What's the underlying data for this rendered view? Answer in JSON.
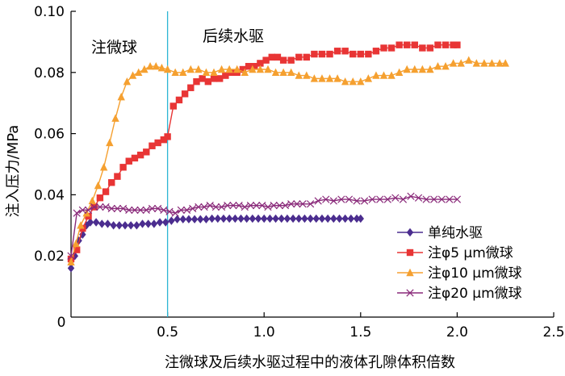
{
  "chart_data": {
    "type": "line",
    "title": "",
    "xlabel": "注微球及后续水驱过程中的液体孔隙体积倍数",
    "ylabel": "注入压力/MPa",
    "xlim": [
      0,
      2.5
    ],
    "ylim": [
      0,
      0.1
    ],
    "x_ticks": [
      "0.5",
      "1.0",
      "1.5",
      "2.0",
      "2.5"
    ],
    "y_ticks": [
      "0",
      "0.02",
      "0.04",
      "0.06",
      "0.08",
      "0.10"
    ],
    "grid": false,
    "legend_position": "bottom-right",
    "annotations": [
      {
        "text": "注微球"
      },
      {
        "text": "后续水驱"
      }
    ],
    "vline": {
      "x": 0.5,
      "color": "#2bb5d4"
    },
    "series": [
      {
        "name": "单纯水驱",
        "color": "#4b2d8f",
        "marker": "diamond",
        "x": [
          0.0,
          0.02,
          0.04,
          0.06,
          0.08,
          0.1,
          0.13,
          0.16,
          0.19,
          0.22,
          0.25,
          0.28,
          0.31,
          0.34,
          0.37,
          0.4,
          0.43,
          0.46,
          0.49,
          0.52,
          0.55,
          0.58,
          0.61,
          0.64,
          0.67,
          0.7,
          0.73,
          0.76,
          0.79,
          0.82,
          0.85,
          0.88,
          0.91,
          0.94,
          0.97,
          1.0,
          1.03,
          1.06,
          1.09,
          1.12,
          1.15,
          1.18,
          1.21,
          1.24,
          1.27,
          1.3,
          1.33,
          1.36,
          1.39,
          1.42,
          1.45,
          1.48,
          1.5
        ],
        "y": [
          0.016,
          0.02,
          0.025,
          0.027,
          0.03,
          0.031,
          0.031,
          0.0305,
          0.0305,
          0.03,
          0.03,
          0.03,
          0.03,
          0.03,
          0.0305,
          0.0305,
          0.0305,
          0.031,
          0.031,
          0.0315,
          0.032,
          0.032,
          0.032,
          0.032,
          0.032,
          0.032,
          0.0322,
          0.0322,
          0.0322,
          0.0322,
          0.0322,
          0.0322,
          0.0322,
          0.0322,
          0.0322,
          0.0322,
          0.0322,
          0.0322,
          0.0322,
          0.0322,
          0.0322,
          0.0322,
          0.0322,
          0.0322,
          0.0322,
          0.0322,
          0.0322,
          0.0322,
          0.0322,
          0.0322,
          0.0322,
          0.0322,
          0.0322
        ]
      },
      {
        "name": "注φ5 μm微球",
        "color": "#e83535",
        "marker": "square",
        "x": [
          0.0,
          0.03,
          0.06,
          0.09,
          0.12,
          0.15,
          0.18,
          0.21,
          0.24,
          0.27,
          0.3,
          0.33,
          0.36,
          0.39,
          0.42,
          0.45,
          0.48,
          0.5,
          0.53,
          0.56,
          0.59,
          0.62,
          0.65,
          0.68,
          0.71,
          0.74,
          0.77,
          0.8,
          0.83,
          0.86,
          0.89,
          0.92,
          0.95,
          0.98,
          1.01,
          1.04,
          1.07,
          1.1,
          1.14,
          1.18,
          1.22,
          1.26,
          1.3,
          1.34,
          1.38,
          1.42,
          1.46,
          1.5,
          1.54,
          1.58,
          1.62,
          1.66,
          1.7,
          1.74,
          1.78,
          1.82,
          1.86,
          1.9,
          1.94,
          1.98,
          2.0
        ],
        "y": [
          0.019,
          0.022,
          0.029,
          0.033,
          0.036,
          0.039,
          0.041,
          0.044,
          0.046,
          0.049,
          0.051,
          0.052,
          0.053,
          0.054,
          0.056,
          0.057,
          0.058,
          0.059,
          0.069,
          0.071,
          0.073,
          0.075,
          0.077,
          0.078,
          0.077,
          0.078,
          0.078,
          0.079,
          0.08,
          0.08,
          0.081,
          0.082,
          0.082,
          0.083,
          0.084,
          0.085,
          0.085,
          0.084,
          0.084,
          0.085,
          0.085,
          0.086,
          0.086,
          0.086,
          0.087,
          0.087,
          0.086,
          0.086,
          0.086,
          0.087,
          0.088,
          0.088,
          0.089,
          0.089,
          0.089,
          0.088,
          0.088,
          0.089,
          0.089,
          0.089,
          0.089
        ]
      },
      {
        "name": "注φ10 μm微球",
        "color": "#f5a030",
        "marker": "triangle",
        "x": [
          0.0,
          0.025,
          0.05,
          0.08,
          0.11,
          0.14,
          0.17,
          0.2,
          0.23,
          0.26,
          0.29,
          0.32,
          0.35,
          0.38,
          0.41,
          0.44,
          0.47,
          0.5,
          0.54,
          0.58,
          0.62,
          0.66,
          0.7,
          0.74,
          0.78,
          0.82,
          0.86,
          0.9,
          0.94,
          0.98,
          1.02,
          1.06,
          1.1,
          1.14,
          1.18,
          1.22,
          1.26,
          1.3,
          1.34,
          1.38,
          1.42,
          1.46,
          1.5,
          1.54,
          1.58,
          1.62,
          1.66,
          1.7,
          1.74,
          1.78,
          1.82,
          1.86,
          1.9,
          1.94,
          1.98,
          2.02,
          2.06,
          2.1,
          2.14,
          2.18,
          2.22,
          2.25
        ],
        "y": [
          0.018,
          0.024,
          0.03,
          0.034,
          0.038,
          0.043,
          0.049,
          0.057,
          0.065,
          0.072,
          0.077,
          0.079,
          0.08,
          0.081,
          0.082,
          0.082,
          0.0815,
          0.081,
          0.08,
          0.08,
          0.081,
          0.081,
          0.08,
          0.08,
          0.081,
          0.081,
          0.081,
          0.08,
          0.081,
          0.081,
          0.081,
          0.08,
          0.08,
          0.08,
          0.079,
          0.079,
          0.078,
          0.078,
          0.078,
          0.078,
          0.077,
          0.077,
          0.077,
          0.078,
          0.079,
          0.079,
          0.079,
          0.08,
          0.081,
          0.081,
          0.081,
          0.081,
          0.082,
          0.082,
          0.083,
          0.083,
          0.084,
          0.083,
          0.083,
          0.083,
          0.083,
          0.083
        ]
      },
      {
        "name": "注φ20 μm微球",
        "color": "#8a2a7a",
        "marker": "x",
        "x": [
          0.0,
          0.03,
          0.06,
          0.09,
          0.12,
          0.15,
          0.18,
          0.21,
          0.24,
          0.27,
          0.3,
          0.33,
          0.36,
          0.39,
          0.42,
          0.45,
          0.48,
          0.51,
          0.54,
          0.57,
          0.6,
          0.63,
          0.66,
          0.69,
          0.72,
          0.75,
          0.78,
          0.81,
          0.84,
          0.87,
          0.9,
          0.93,
          0.96,
          0.99,
          1.02,
          1.05,
          1.08,
          1.11,
          1.14,
          1.17,
          1.2,
          1.24,
          1.28,
          1.32,
          1.36,
          1.4,
          1.44,
          1.48,
          1.52,
          1.56,
          1.6,
          1.64,
          1.68,
          1.72,
          1.76,
          1.8,
          1.84,
          1.88,
          1.92,
          1.96,
          2.0
        ],
        "y": [
          0.02,
          0.034,
          0.035,
          0.035,
          0.036,
          0.036,
          0.036,
          0.0355,
          0.0355,
          0.0355,
          0.035,
          0.035,
          0.035,
          0.035,
          0.0355,
          0.0355,
          0.035,
          0.0345,
          0.034,
          0.035,
          0.035,
          0.0355,
          0.036,
          0.036,
          0.0365,
          0.036,
          0.036,
          0.0365,
          0.0365,
          0.0365,
          0.036,
          0.0365,
          0.0365,
          0.0365,
          0.036,
          0.0365,
          0.0365,
          0.0365,
          0.037,
          0.037,
          0.037,
          0.037,
          0.038,
          0.0385,
          0.038,
          0.0385,
          0.0385,
          0.038,
          0.038,
          0.0385,
          0.0385,
          0.0385,
          0.039,
          0.0385,
          0.0395,
          0.039,
          0.0385,
          0.0385,
          0.0385,
          0.0385,
          0.0385
        ]
      }
    ]
  }
}
